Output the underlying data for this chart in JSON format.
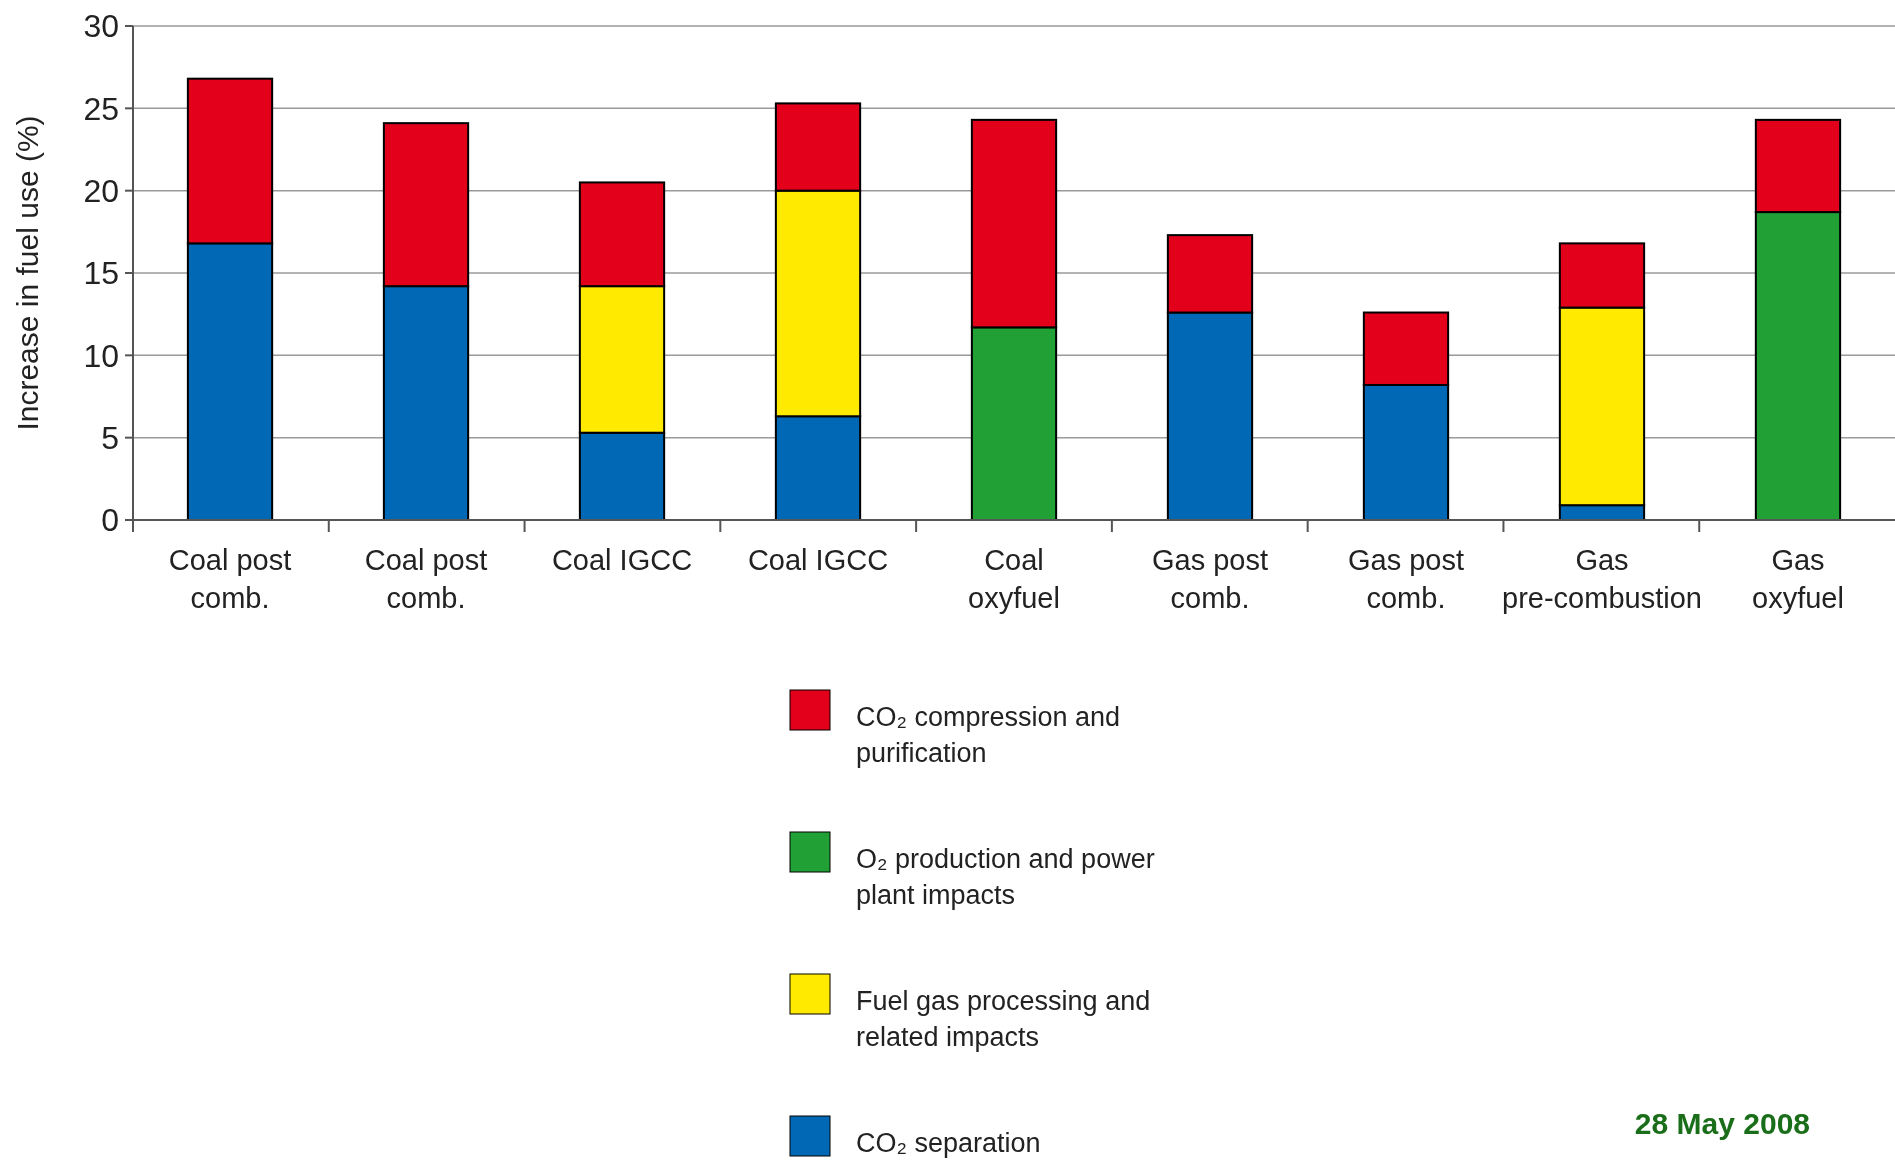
{
  "chart_data": {
    "type": "bar",
    "stacked": true,
    "ylabel": "Increase in fuel use (%)",
    "categories": [
      "Coal post comb.",
      "Coal post comb.",
      "Coal IGCC",
      "Coal IGCC",
      "Coal oxyfuel",
      "Gas post comb.",
      "Gas post comb.",
      "Gas pre-combustion",
      "Gas oxyfuel"
    ],
    "series": [
      {
        "name": "CO₂ separation",
        "color": "#0068b4",
        "values": [
          16.8,
          14.2,
          5.3,
          6.3,
          0,
          12.6,
          8.2,
          0.9,
          0
        ]
      },
      {
        "name": "Fuel gas processing and related impacts",
        "color": "#ffea00",
        "values": [
          0,
          0,
          8.9,
          13.7,
          0,
          0,
          0,
          12.0,
          0
        ]
      },
      {
        "name": "O₂ production and power plant impacts",
        "color": "#21a035",
        "values": [
          0,
          0,
          0,
          0,
          11.7,
          0,
          0,
          0,
          18.7
        ]
      },
      {
        "name": "CO₂ compression and purification",
        "color": "#e2001a",
        "values": [
          10.0,
          9.9,
          6.3,
          5.3,
          12.6,
          4.7,
          4.4,
          3.9,
          5.6
        ]
      }
    ],
    "ylim": [
      0,
      30
    ],
    "yticks": [
      0,
      5,
      10,
      15,
      20,
      25,
      30
    ],
    "grid": "y",
    "legend": "bottom",
    "annotations": [
      "28 May 2008"
    ]
  }
}
